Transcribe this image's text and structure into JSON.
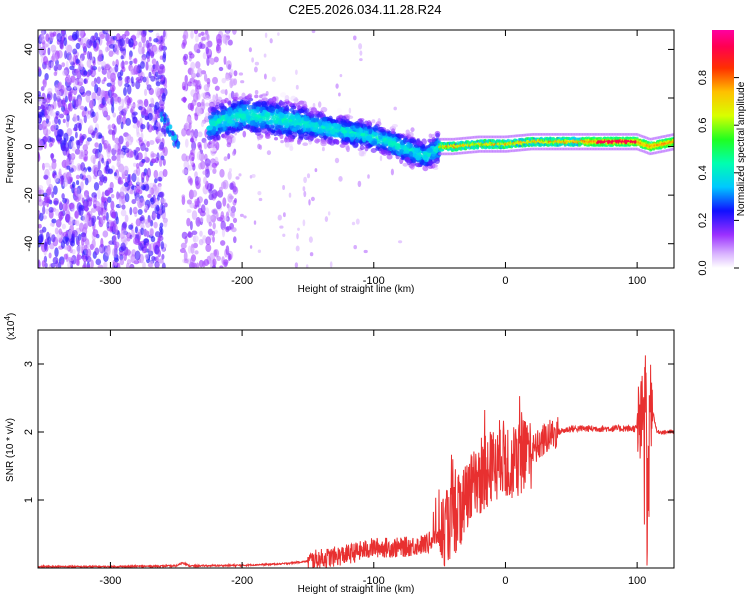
{
  "title": "C2E5.2026.034.11.28.R24",
  "chart_data": [
    {
      "type": "heatmap",
      "name": "spectrogram",
      "xlabel": "Height of straight line (km)",
      "ylabel": "Frequency (Hz)",
      "xlim": [
        -355,
        128
      ],
      "ylim": [
        -50,
        48
      ],
      "xticks": [
        -300,
        -200,
        -100,
        0,
        100
      ],
      "xtick_labels": [
        "-300",
        "-200",
        "-100",
        "0",
        "100"
      ],
      "yticks": [
        -40,
        -20,
        0,
        20,
        40
      ],
      "ytick_labels": [
        "-40",
        "-20",
        "0",
        "20",
        "40"
      ],
      "colorbar": {
        "label": "Normalized spectral amplitude",
        "range": [
          0,
          1
        ],
        "ticks": [
          0.0,
          0.2,
          0.4,
          0.6,
          0.8
        ],
        "tick_labels": [
          "0.0",
          "0.2",
          "0.4",
          "0.6",
          "0.8"
        ],
        "colormap": "rainbow (white-violet-blue-cyan-green-yellow-orange-red-pink)"
      },
      "regions": [
        {
          "x": [
            -355,
            -258
          ],
          "description": "noise speckle across full band",
          "amplitude": 0.15
        },
        {
          "x": [
            -245,
            -205
          ],
          "description": "noise speckle across full band",
          "amplitude": 0.1
        },
        {
          "x": [
            -225,
            -50
          ],
          "description": "signal band descending from ~+13 Hz to ~-8 Hz",
          "amplitude": 0.35
        },
        {
          "x": [
            -50,
            128
          ],
          "description": "narrow carrier near +2 Hz",
          "amplitude": 0.8
        }
      ],
      "ridge": {
        "x": [
          -260,
          -250,
          -220,
          -200,
          -180,
          -150,
          -120,
          -100,
          -80,
          -60,
          -50,
          -40,
          -20,
          0,
          20,
          60,
          100,
          110,
          128
        ],
        "y": [
          13,
          2,
          10,
          13,
          12,
          9,
          6,
          4,
          0,
          -4,
          0,
          0,
          1,
          1,
          2,
          2,
          2,
          0,
          2
        ]
      }
    },
    {
      "type": "line",
      "name": "snr",
      "xlabel": "Height of straight line (km)",
      "ylabel": "SNR (10 * v/v)",
      "yscale_label": "(x10^4)",
      "yscale_base": "(x10",
      "yscale_exp": "4",
      "xlim": [
        -355,
        128
      ],
      "ylim": [
        0,
        3.5
      ],
      "xticks": [
        -300,
        -200,
        -100,
        0,
        100
      ],
      "xtick_labels": [
        "-300",
        "-200",
        "-100",
        "0",
        "100"
      ],
      "yticks": [
        1,
        2,
        3
      ],
      "ytick_labels": [
        "1",
        "2",
        "3"
      ],
      "color": "#e83030",
      "series": [
        {
          "name": "SNR",
          "x": [
            -355,
            -300,
            -250,
            -245,
            -240,
            -200,
            -170,
            -150,
            -120,
            -100,
            -80,
            -60,
            -50,
            -40,
            -30,
            -20,
            -10,
            0,
            10,
            20,
            30,
            40,
            50,
            60,
            80,
            100,
            103,
            105,
            107,
            108,
            110,
            115,
            128
          ],
          "y": [
            0.02,
            0.02,
            0.03,
            0.08,
            0.03,
            0.04,
            0.06,
            0.1,
            0.2,
            0.3,
            0.3,
            0.35,
            0.5,
            0.7,
            1.0,
            1.3,
            1.5,
            1.5,
            1.6,
            1.7,
            1.9,
            2.0,
            2.05,
            2.05,
            2.05,
            2.05,
            2.1,
            2.3,
            2.6,
            1.2,
            2.5,
            2.0,
            2.0
          ]
        }
      ]
    }
  ]
}
